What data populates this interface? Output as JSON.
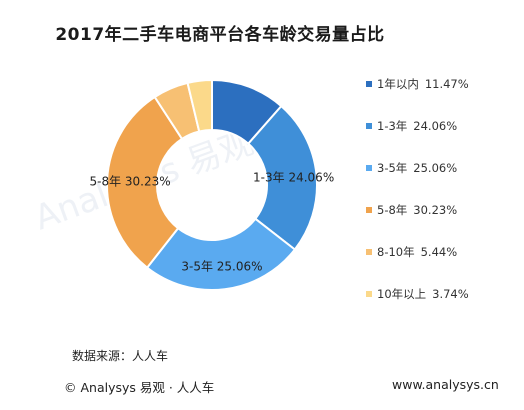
{
  "chart_data": {
    "type": "pie",
    "title": "2017年二手车电商平台各车龄交易量占比",
    "categories": [
      "1年以内",
      "1-3年",
      "3-5年",
      "5-8年",
      "8-10年",
      "10年以上"
    ],
    "values": [
      11.47,
      24.06,
      25.06,
      30.23,
      5.44,
      3.74
    ],
    "value_labels": [
      "11.47%",
      "24.06%",
      "25.06%",
      "30.23%",
      "5.44%",
      "3.74%"
    ],
    "colors": [
      "#2c6fbf",
      "#3f8fd8",
      "#5aaaf0",
      "#f0a34d",
      "#f7c073",
      "#fbd98a"
    ],
    "donut": true,
    "legend_position": "right",
    "slice_labels": [
      {
        "category": "1-3年",
        "value": "24.06%"
      },
      {
        "category": "3-5年",
        "value": "25.06%"
      },
      {
        "category": "5-8年",
        "value": "30.23%"
      }
    ]
  },
  "source_text": "数据来源：人人车",
  "footer": {
    "left": "© Analysys  易观 · 人人车",
    "right": "www.analysys.cn"
  }
}
